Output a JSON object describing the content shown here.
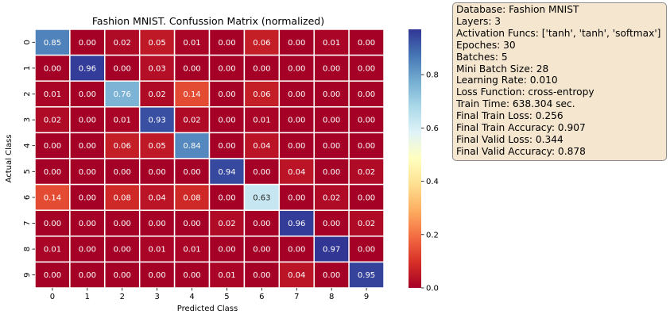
{
  "chart_data": {
    "type": "heatmap",
    "title": "Fashion MNIST. Confussion Matrix (normalized)",
    "xlabel": "Predicted Class",
    "ylabel": "Actual Class",
    "x_categories": [
      "0",
      "1",
      "2",
      "3",
      "4",
      "5",
      "6",
      "7",
      "8",
      "9"
    ],
    "y_categories": [
      "0",
      "1",
      "2",
      "3",
      "4",
      "5",
      "6",
      "7",
      "8",
      "9"
    ],
    "values": [
      [
        0.85,
        0.0,
        0.02,
        0.05,
        0.01,
        0.0,
        0.06,
        0.0,
        0.01,
        0.0
      ],
      [
        0.0,
        0.96,
        0.0,
        0.03,
        0.0,
        0.0,
        0.0,
        0.0,
        0.0,
        0.0
      ],
      [
        0.01,
        0.0,
        0.76,
        0.02,
        0.14,
        0.0,
        0.06,
        0.0,
        0.0,
        0.0
      ],
      [
        0.02,
        0.0,
        0.01,
        0.93,
        0.02,
        0.0,
        0.01,
        0.0,
        0.0,
        0.0
      ],
      [
        0.0,
        0.0,
        0.06,
        0.05,
        0.84,
        0.0,
        0.04,
        0.0,
        0.0,
        0.0
      ],
      [
        0.0,
        0.0,
        0.0,
        0.0,
        0.0,
        0.94,
        0.0,
        0.04,
        0.0,
        0.02
      ],
      [
        0.14,
        0.0,
        0.08,
        0.04,
        0.08,
        0.0,
        0.63,
        0.0,
        0.02,
        0.0
      ],
      [
        0.0,
        0.0,
        0.0,
        0.0,
        0.0,
        0.02,
        0.0,
        0.96,
        0.0,
        0.02
      ],
      [
        0.01,
        0.0,
        0.0,
        0.01,
        0.01,
        0.0,
        0.0,
        0.0,
        0.97,
        0.0
      ],
      [
        0.0,
        0.0,
        0.0,
        0.0,
        0.0,
        0.01,
        0.0,
        0.04,
        0.0,
        0.95
      ]
    ],
    "color_scale": {
      "colormap": "RdYlBu",
      "vmin": 0.0,
      "vmax": 0.97,
      "ticks": [
        0.0,
        0.2,
        0.4,
        0.6,
        0.8
      ],
      "tick_labels": [
        "0.0",
        "0.2",
        "0.4",
        "0.6",
        "0.8"
      ]
    },
    "grid": true,
    "annotated": true
  },
  "colors": {
    "cell_gridline": "#ffffff",
    "low_end": "#a50026",
    "high_end": "#313695",
    "info_box_background": "#f5e6cf",
    "info_box_border": "#8c8c8c"
  },
  "info_box": {
    "lines": [
      "Database: Fashion MNIST",
      "Layers: 3",
      "Activation Funcs: ['tanh', 'tanh', 'softmax']",
      "Epoches: 30",
      "Batches: 5",
      "Mini Batch Size: 28",
      "Learning Rate: 0.010",
      "Loss Function: cross-entropy",
      "Train Time: 638.304 sec.",
      "Final Train Loss: 0.256",
      "Final Train Accuracy: 0.907",
      "Final Valid Loss: 0.344",
      "Final Valid Accuracy: 0.878"
    ]
  }
}
